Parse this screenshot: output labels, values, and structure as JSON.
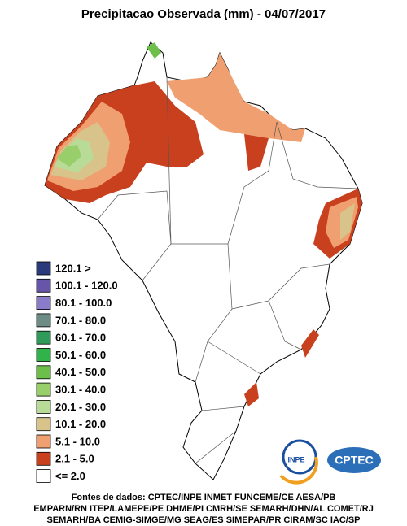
{
  "title": "Precipitacao Observada (mm) - 04/07/2017",
  "legend": [
    {
      "label": "120.1 >",
      "color": "#2b3a7a"
    },
    {
      "label": "100.1 - 120.0",
      "color": "#6655a8"
    },
    {
      "label": "80.1 - 100.0",
      "color": "#8a7cc8"
    },
    {
      "label": "70.1 - 80.0",
      "color": "#6e8c86"
    },
    {
      "label": "60.1 - 70.0",
      "color": "#2f9a5a"
    },
    {
      "label": "50.1 - 60.0",
      "color": "#2fb34a"
    },
    {
      "label": "40.1 - 50.0",
      "color": "#6cc04a"
    },
    {
      "label": "30.1 - 40.0",
      "color": "#98cf6a"
    },
    {
      "label": "20.1 - 30.0",
      "color": "#b8db98"
    },
    {
      "label": "10.1 - 20.0",
      "color": "#d8c48a"
    },
    {
      "label": "5.1 - 10.0",
      "color": "#f0a070"
    },
    {
      "label": "2.1 - 5.0",
      "color": "#c8401e"
    },
    {
      "label": "<= 2.0",
      "color": "#ffffff"
    }
  ],
  "sources": [
    "Fontes de dados: CPTEC/INPE INMET FUNCEME/CE AESA/PB",
    "EMPARN/RN ITEP/LAMEPE/PE DHME/PI CMRH/SE SEMARH/DHN/AL COMET/RJ",
    "SEMARH/BA CEMIG-SIMGE/MG SEAG/ES SIMEPAR/PR CIRAM/SC IAC/SP"
  ],
  "logos": [
    "INPE",
    "CPTEC"
  ]
}
